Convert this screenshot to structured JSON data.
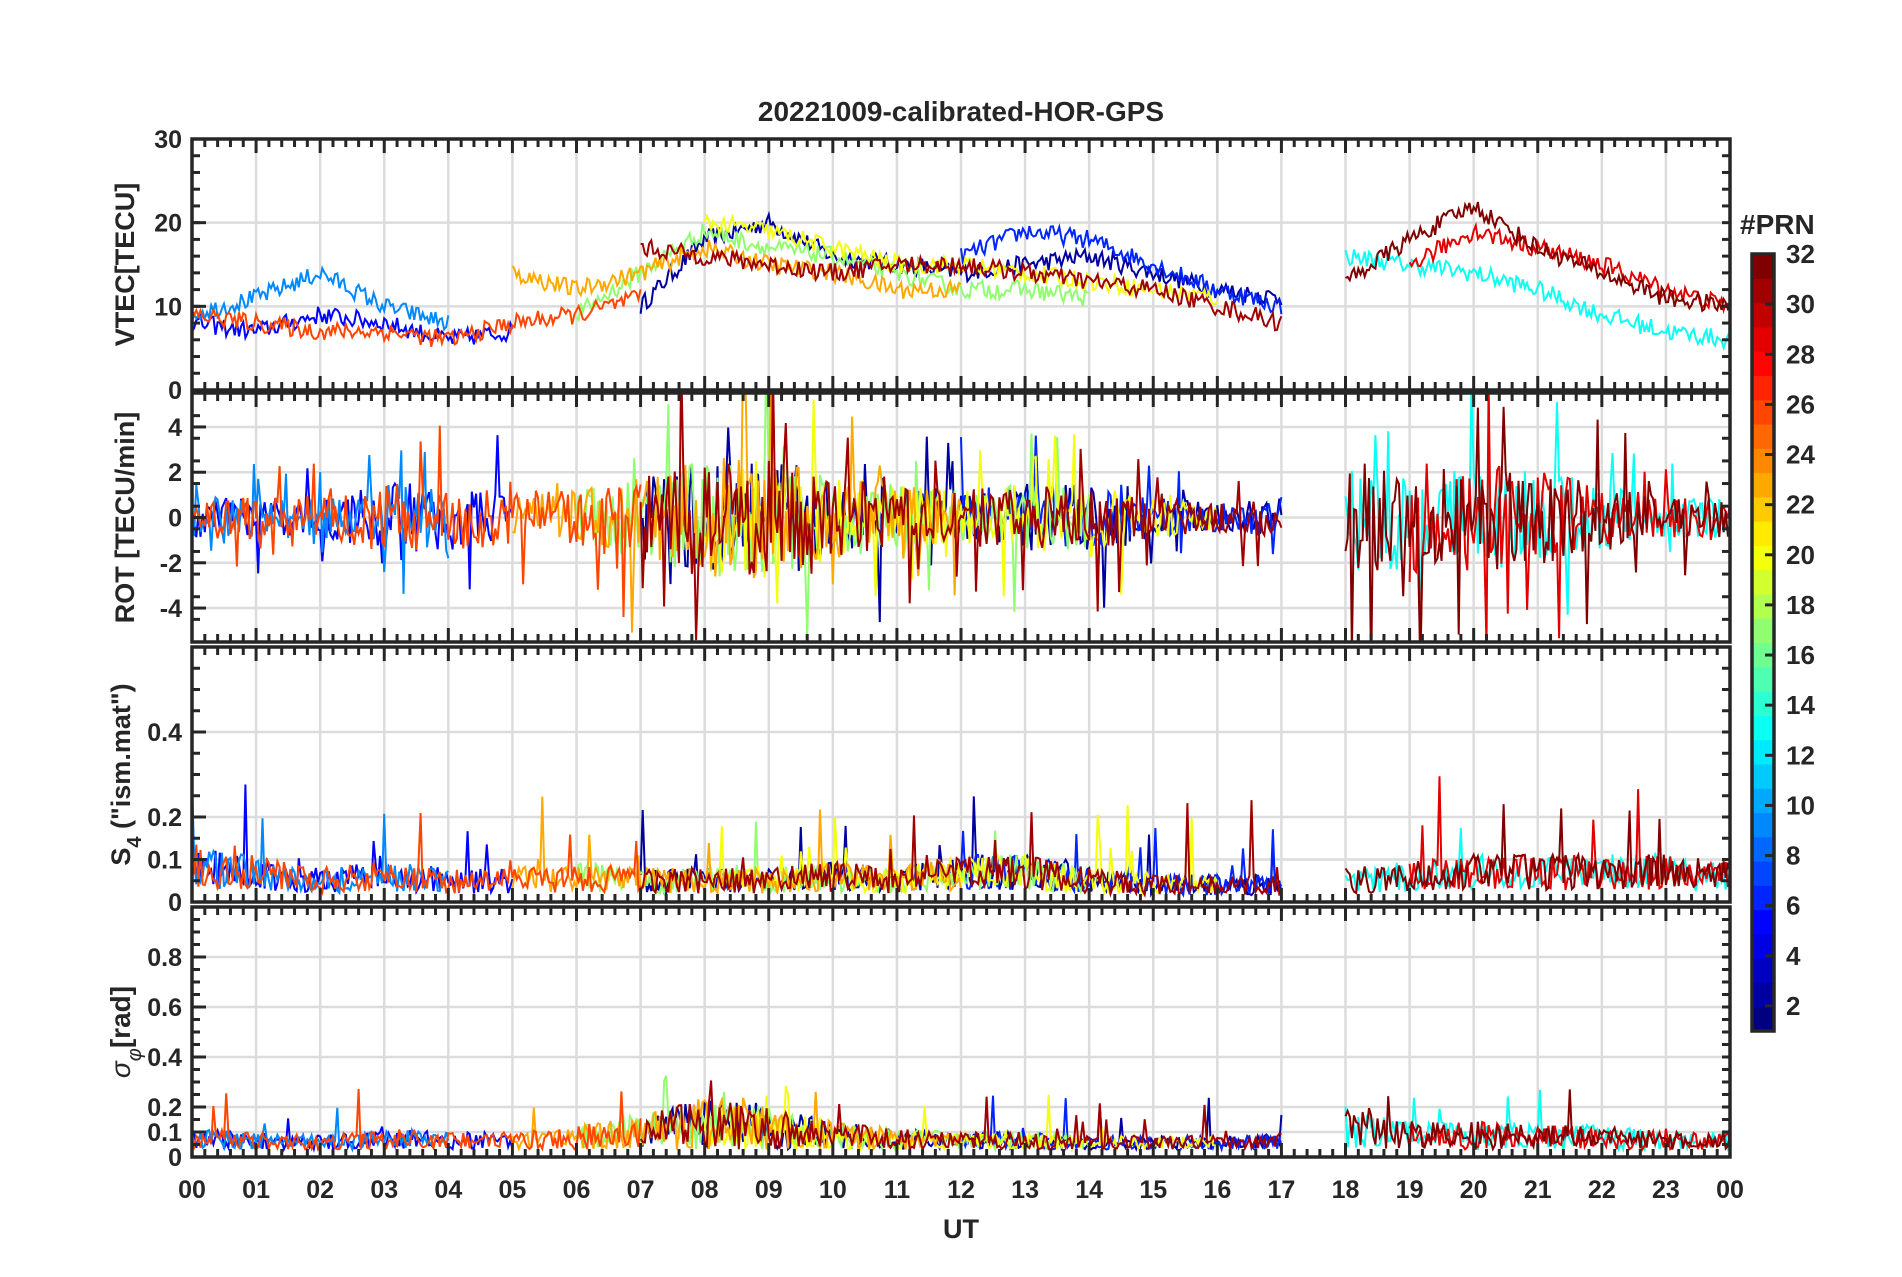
{
  "chart_data": {
    "type": "line",
    "title": "20221009-calibrated-HOR-GPS",
    "xlabel": "UT",
    "xlim": [
      0,
      24
    ],
    "x_tick_labels": [
      "00",
      "01",
      "02",
      "03",
      "04",
      "05",
      "06",
      "07",
      "08",
      "09",
      "10",
      "11",
      "12",
      "13",
      "14",
      "15",
      "16",
      "17",
      "18",
      "19",
      "20",
      "21",
      "22",
      "23",
      "00"
    ],
    "grid": true,
    "panels": [
      {
        "id": "vtec",
        "ylabel": "VTEC[TECU]",
        "ylim": [
          0,
          30
        ],
        "yticks": [
          0,
          10,
          20,
          30
        ],
        "tick_labels": [
          "0",
          "10",
          "20",
          "30"
        ]
      },
      {
        "id": "rot",
        "ylabel": "ROT [TECU/min]",
        "ylim": [
          -5.5,
          5.5
        ],
        "yticks": [
          -4,
          -2,
          0,
          2,
          4
        ],
        "tick_labels": [
          "-4",
          "-2",
          "0",
          "2",
          "4"
        ]
      },
      {
        "id": "s4",
        "ylabel": "S",
        "ylabel_sub": "4",
        "ylabel_suffix": " (\"ism.mat\")",
        "ylim": [
          0,
          0.6
        ],
        "yticks": [
          0,
          0.1,
          0.2,
          0.4
        ],
        "tick_labels": [
          "0",
          "0.1",
          "0.2",
          "0.4"
        ]
      },
      {
        "id": "sigma",
        "ylabel": "σ",
        "ylabel_sub": "φ",
        "ylabel_suffix": "[rad]",
        "ylim": [
          0,
          1.0
        ],
        "yticks": [
          0,
          0.1,
          0.2,
          0.4,
          0.6,
          0.8
        ],
        "tick_labels": [
          "0",
          "0.1",
          "0.2",
          "0.4",
          "0.6",
          "0.8"
        ]
      }
    ],
    "colorbar": {
      "label": "#PRN",
      "clim": [
        1,
        32
      ],
      "ticks": [
        2,
        4,
        6,
        8,
        10,
        12,
        14,
        16,
        18,
        20,
        22,
        24,
        26,
        28,
        30,
        32
      ],
      "tick_labels": [
        "2",
        "4",
        "6",
        "8",
        "10",
        "12",
        "14",
        "16",
        "18",
        "20",
        "22",
        "24",
        "26",
        "28",
        "30",
        "32"
      ],
      "colormap": "jet"
    },
    "series": [
      {
        "prn": 2,
        "start": 7,
        "vtec": [
          10,
          18,
          20,
          16,
          15,
          14,
          15,
          16,
          14,
          12,
          11
        ]
      },
      {
        "prn": 5,
        "start": 0,
        "vtec": [
          8,
          7,
          9,
          8,
          6,
          7
        ]
      },
      {
        "prn": 9,
        "start": 0,
        "vtec": [
          9,
          11,
          14,
          10,
          8
        ]
      },
      {
        "prn": 6,
        "start": 12,
        "vtec": [
          16,
          19,
          18,
          15,
          12,
          10
        ]
      },
      {
        "prn": 13,
        "start": 18,
        "vtec": [
          16,
          15,
          14,
          12,
          9,
          7,
          6
        ]
      },
      {
        "prn": 17,
        "start": 6,
        "vtec": [
          9,
          14,
          19,
          17,
          16,
          14,
          12,
          12,
          11
        ]
      },
      {
        "prn": 20,
        "start": 8,
        "vtec": [
          20,
          19,
          17,
          15,
          15,
          14,
          13,
          12,
          11
        ]
      },
      {
        "prn": 23,
        "start": 5,
        "vtec": [
          14,
          12,
          14,
          17,
          15,
          14,
          12,
          12
        ]
      },
      {
        "prn": 26,
        "start": 0,
        "vtec": [
          9,
          8,
          7,
          7,
          6,
          8,
          9,
          11
        ]
      },
      {
        "prn": 29,
        "start": 19,
        "vtec": [
          15,
          19,
          17,
          15,
          12,
          10
        ]
      },
      {
        "prn": 31,
        "start": 7,
        "vtec": [
          17,
          16,
          15,
          14,
          15,
          15,
          14,
          13,
          12,
          10,
          8
        ]
      },
      {
        "prn": 32,
        "start": 18,
        "vtec": [
          13,
          18,
          22,
          17,
          14,
          11,
          10
        ]
      }
    ],
    "hourly_activity": {
      "rot_amplitude": [
        1.5,
        1.5,
        1.5,
        2.5,
        2.5,
        2,
        2,
        3,
        4.5,
        4.5,
        3,
        2.5,
        2,
        2.5,
        2.5,
        1.5,
        1,
        1.5,
        4,
        4,
        4,
        3.5,
        2.5,
        1.5,
        1.5
      ],
      "s4_level": [
        0.08,
        0.07,
        0.05,
        0.06,
        0.05,
        0.05,
        0.06,
        0.05,
        0.05,
        0.05,
        0.06,
        0.05,
        0.07,
        0.07,
        0.05,
        0.04,
        0.04,
        0.04,
        0.05,
        0.06,
        0.07,
        0.07,
        0.07,
        0.07,
        0.06
      ],
      "sigma_level": [
        0.06,
        0.05,
        0.04,
        0.06,
        0.05,
        0.05,
        0.07,
        0.1,
        0.15,
        0.12,
        0.08,
        0.06,
        0.05,
        0.05,
        0.04,
        0.04,
        0.04,
        0.05,
        0.12,
        0.08,
        0.08,
        0.07,
        0.07,
        0.05,
        0.05
      ]
    }
  }
}
